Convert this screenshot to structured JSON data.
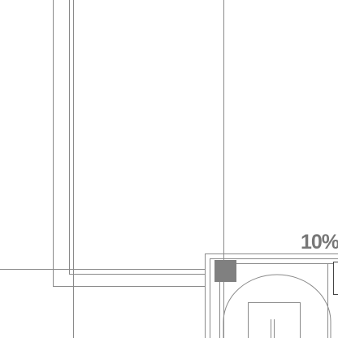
{
  "canvas": {
    "zoom_label": "10%",
    "colors": {
      "background": "#ffffff",
      "line": "#8a8a8a",
      "line_dark": "#666666",
      "marker_fill": "#808080",
      "text": "#777777"
    }
  },
  "icons": {
    "selection_marker": "square-marker-icon"
  }
}
